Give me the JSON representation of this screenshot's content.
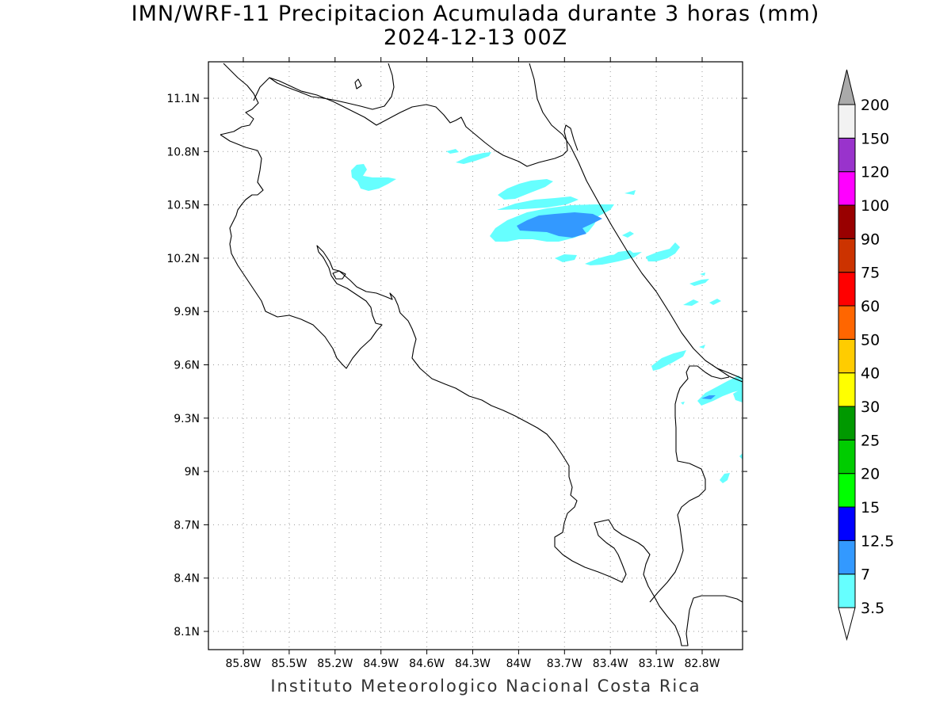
{
  "title": {
    "line1": "IMN/WRF-11 Precipitacion Acumulada durante 3 horas (mm)",
    "line2": "2024-12-13 00Z"
  },
  "footer": "Instituto Meteorologico Nacional Costa Rica",
  "map": {
    "lon_range": [
      86.03,
      83.3
    ],
    "lat_range": [
      8.0,
      11.3
    ],
    "lon_ticks": [
      {
        "value": 85.8,
        "label": "85.8W"
      },
      {
        "value": 85.5,
        "label": "85.5W"
      },
      {
        "value": 85.2,
        "label": "85.2W"
      },
      {
        "value": 84.9,
        "label": "84.9W"
      },
      {
        "value": 84.6,
        "label": "84.6W"
      },
      {
        "value": 84.3,
        "label": "84.3W"
      },
      {
        "value": 84.0,
        "label": "84W"
      },
      {
        "value": 83.7,
        "label": "83.7W"
      },
      {
        "value": 83.4,
        "label": "83.4W"
      },
      {
        "value": 83.1,
        "label": "83.1W"
      },
      {
        "value": 82.8,
        "label": "82.8W"
      }
    ],
    "lat_ticks": [
      {
        "value": 11.1,
        "label": "11.1N"
      },
      {
        "value": 10.8,
        "label": "10.8N"
      },
      {
        "value": 10.5,
        "label": "10.5N"
      },
      {
        "value": 10.2,
        "label": "10.2N"
      },
      {
        "value": 9.9,
        "label": "9.9N"
      },
      {
        "value": 9.6,
        "label": "9.6N"
      },
      {
        "value": 9.3,
        "label": "9.3N"
      },
      {
        "value": 9.0,
        "label": "9N"
      },
      {
        "value": 8.7,
        "label": "8.7N"
      },
      {
        "value": 8.4,
        "label": "8.4N"
      },
      {
        "value": 8.1,
        "label": "8.1N"
      }
    ],
    "grid": true
  },
  "colorbar": {
    "levels": [
      {
        "label": "3.5",
        "color": "#66ffff"
      },
      {
        "label": "7",
        "color": "#3399ff"
      },
      {
        "label": "12.5",
        "color": "#0000ff"
      },
      {
        "label": "15",
        "color": "#00ff00"
      },
      {
        "label": "20",
        "color": "#00cc00"
      },
      {
        "label": "25",
        "color": "#009900"
      },
      {
        "label": "30",
        "color": "#ffff00"
      },
      {
        "label": "40",
        "color": "#ffcc00"
      },
      {
        "label": "50",
        "color": "#ff6600"
      },
      {
        "label": "60",
        "color": "#ff0000"
      },
      {
        "label": "75",
        "color": "#cc3300"
      },
      {
        "label": "90",
        "color": "#990000"
      },
      {
        "label": "100",
        "color": "#ff00ff"
      },
      {
        "label": "120",
        "color": "#9933cc"
      },
      {
        "label": "150",
        "color": "#f2f2f2"
      },
      {
        "label": "200",
        "color": "#aaaaaa"
      }
    ]
  }
}
